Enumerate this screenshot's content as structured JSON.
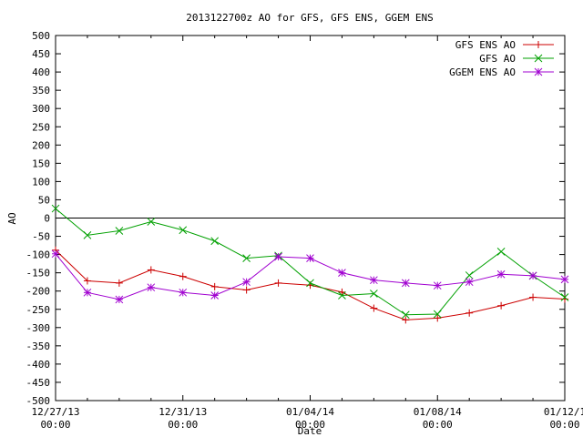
{
  "chart_data": {
    "type": "line",
    "title": "2013122700z AO for GFS, GFS ENS, GGEM ENS",
    "xlabel": "Date",
    "ylabel": "AO",
    "ylim": [
      -500,
      500
    ],
    "yticks": [
      -500,
      -450,
      -400,
      -350,
      -300,
      -250,
      -200,
      -150,
      -100,
      -50,
      0,
      50,
      100,
      150,
      200,
      250,
      300,
      350,
      400,
      450,
      500
    ],
    "xlim": [
      0,
      16
    ],
    "xticks": [
      {
        "x": 0,
        "line1": "12/27/13",
        "line2": "00:00"
      },
      {
        "x": 4,
        "line1": "12/31/13",
        "line2": "00:00"
      },
      {
        "x": 8,
        "line1": "01/04/14",
        "line2": "00:00"
      },
      {
        "x": 12,
        "line1": "01/08/14",
        "line2": "00:00"
      },
      {
        "x": 16,
        "line1": "01/12/1",
        "line2": "00:00"
      }
    ],
    "minor_xticks": [
      1,
      2,
      3,
      5,
      6,
      7,
      9,
      10,
      11,
      13,
      14,
      15
    ],
    "zero_line": true,
    "grid": false,
    "legend_position": "top-right",
    "x": [
      0,
      1,
      2,
      3,
      4,
      5,
      6,
      7,
      8,
      9,
      10,
      11,
      12,
      13,
      14,
      15,
      16
    ],
    "series": [
      {
        "name": "GFS ENS AO",
        "color": "#cc0000",
        "marker": "plus",
        "values": [
          -88,
          -172,
          -178,
          -142,
          -160,
          -188,
          -197,
          -178,
          -184,
          -203,
          -247,
          -279,
          -274,
          -260,
          -240,
          -217,
          -222
        ]
      },
      {
        "name": "GFS AO",
        "color": "#00a000",
        "marker": "x",
        "values": [
          26,
          -47,
          -35,
          -10,
          -33,
          -63,
          -110,
          -103,
          -178,
          -212,
          -207,
          -265,
          -263,
          -157,
          -92,
          -158,
          -217
        ]
      },
      {
        "name": "GGEM ENS AO",
        "color": "#a000d0",
        "marker": "star",
        "values": [
          -98,
          -204,
          -223,
          -190,
          -204,
          -212,
          -175,
          -106,
          -110,
          -150,
          -170,
          -178,
          -185,
          -175,
          -154,
          -158,
          -168
        ]
      }
    ]
  }
}
